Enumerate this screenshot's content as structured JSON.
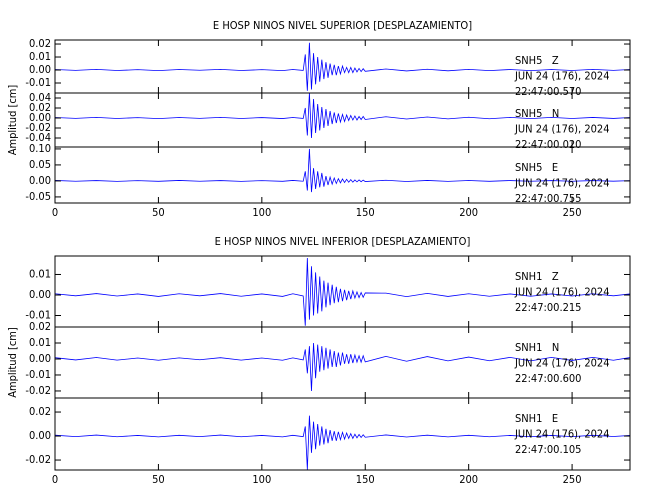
{
  "chart_data": [
    {
      "type": "line",
      "title": "E HOSP NINOS NIVEL SUPERIOR [DESPLAZAMIENTO]",
      "annotations": [
        "SNH5   Z",
        "JUN 24 (176), 2024",
        "22:47:00.570"
      ],
      "color": "#0000ff",
      "xlim": [
        0,
        278
      ],
      "xticks": [
        0,
        50,
        100,
        150,
        200,
        250
      ],
      "xtick_labels": false,
      "ylim": [
        -0.0177,
        0.0231
      ],
      "yticks": [
        0.02,
        0.01,
        {
          "value": 0,
          "label": "0.00"
        },
        -0.01
      ],
      "x": [
        0,
        10,
        20,
        30,
        40,
        50,
        60,
        70,
        80,
        90,
        100,
        110,
        115,
        120,
        121,
        122,
        123,
        124,
        125,
        126,
        127,
        128,
        129,
        130,
        131,
        132,
        133,
        134,
        135,
        136,
        137,
        138,
        139,
        140,
        141,
        142,
        143,
        144,
        145,
        146,
        147,
        148,
        149,
        150,
        160,
        170,
        180,
        190,
        200,
        210,
        220,
        230,
        240,
        250,
        260,
        270,
        278
      ],
      "values": [
        0.0004,
        -0.0003,
        0.0005,
        -0.0004,
        0.0003,
        -0.0005,
        0.0004,
        -0.0002,
        0.0005,
        -0.0004,
        0.0003,
        -0.0005,
        0.0004,
        -0.0003,
        0.012,
        -0.016,
        0.021,
        -0.015,
        0.013,
        -0.011,
        0.01,
        -0.009,
        0.008,
        -0.007,
        0.006,
        -0.006,
        0.005,
        -0.004,
        0.004,
        -0.004,
        0.003,
        -0.003,
        0.003,
        -0.002,
        0.002,
        -0.002,
        0.002,
        -0.002,
        0.0015,
        -0.0015,
        0.0012,
        -0.0012,
        0.001,
        -0.001,
        0.0008,
        -0.0007,
        0.0006,
        -0.0006,
        0.0005,
        -0.0005,
        0.0004,
        -0.0005,
        0.0004,
        -0.0004,
        0.0005,
        -0.0003,
        0.0004
      ]
    },
    {
      "type": "line",
      "ylabel": "Amplitud [cm]",
      "annotations": [
        "SNH5   N",
        "JUN 24 (176), 2024",
        "22:47:00.020"
      ],
      "color": "#0000ff",
      "xlim": [
        0,
        278
      ],
      "xticks": [
        0,
        50,
        100,
        150,
        200,
        250
      ],
      "xtick_labels": false,
      "ylim": [
        -0.058,
        0.05
      ],
      "yticks": [
        0.04,
        0.02,
        {
          "value": 0,
          "label": "0.00"
        },
        -0.02,
        -0.04
      ],
      "x": [
        0,
        10,
        20,
        30,
        40,
        50,
        60,
        70,
        80,
        90,
        100,
        110,
        115,
        120,
        121,
        122,
        123,
        124,
        125,
        126,
        127,
        128,
        129,
        130,
        131,
        132,
        133,
        134,
        135,
        136,
        137,
        138,
        139,
        140,
        141,
        142,
        143,
        144,
        145,
        146,
        147,
        148,
        149,
        150,
        160,
        170,
        180,
        190,
        200,
        210,
        220,
        230,
        240,
        250,
        260,
        270,
        278
      ],
      "values": [
        0.001,
        -0.0008,
        0.0012,
        -0.001,
        0.0008,
        -0.0012,
        0.001,
        -0.0007,
        0.0012,
        -0.001,
        0.0009,
        -0.0011,
        0.001,
        -0.0009,
        0.02,
        -0.035,
        0.05,
        -0.04,
        0.038,
        -0.03,
        0.028,
        -0.025,
        0.022,
        -0.02,
        0.018,
        -0.016,
        0.014,
        -0.012,
        0.011,
        -0.01,
        0.009,
        -0.008,
        0.007,
        -0.007,
        0.006,
        -0.005,
        0.005,
        -0.004,
        0.004,
        -0.004,
        0.003,
        -0.003,
        0.003,
        -0.003,
        0.0025,
        -0.002,
        0.002,
        -0.0018,
        0.0015,
        -0.0015,
        0.0012,
        -0.0013,
        0.0012,
        -0.001,
        0.0011,
        -0.0009,
        0.001
      ]
    },
    {
      "type": "line",
      "annotations": [
        "SNH5   E",
        "JUN 24 (176), 2024",
        "22:47:00.755"
      ],
      "color": "#0000ff",
      "xlim": [
        0,
        278
      ],
      "xticks": [
        0,
        50,
        100,
        150,
        200,
        250
      ],
      "xtick_labels": true,
      "ylim": [
        -0.069,
        0.106
      ],
      "yticks": [
        {
          "value": 0.1,
          "label": "0.10"
        },
        0.05,
        {
          "value": 0,
          "label": "0.00"
        },
        -0.05
      ],
      "x": [
        0,
        10,
        20,
        30,
        40,
        50,
        60,
        70,
        80,
        90,
        100,
        110,
        115,
        120,
        121,
        122,
        123,
        124,
        125,
        126,
        127,
        128,
        129,
        130,
        131,
        132,
        133,
        134,
        135,
        136,
        137,
        138,
        139,
        140,
        141,
        142,
        143,
        144,
        145,
        146,
        147,
        148,
        149,
        150,
        160,
        170,
        180,
        190,
        200,
        210,
        220,
        230,
        240,
        250,
        260,
        270,
        278
      ],
      "values": [
        0.0015,
        -0.001,
        0.0012,
        -0.0015,
        0.001,
        -0.0012,
        0.0015,
        -0.001,
        0.0012,
        -0.0014,
        0.001,
        -0.0012,
        0.0015,
        -0.001,
        0.03,
        -0.03,
        0.1,
        -0.035,
        0.04,
        -0.025,
        0.03,
        -0.02,
        0.025,
        -0.018,
        0.015,
        -0.013,
        0.012,
        -0.01,
        0.009,
        -0.008,
        0.007,
        -0.006,
        0.006,
        -0.005,
        0.005,
        -0.004,
        0.004,
        -0.004,
        0.003,
        -0.003,
        0.003,
        -0.0025,
        0.0025,
        -0.002,
        0.002,
        -0.0018,
        0.0015,
        -0.0015,
        0.0013,
        -0.0012,
        0.0012,
        -0.001,
        0.0011,
        -0.001,
        0.0012,
        -0.0009,
        0.001
      ]
    },
    {
      "type": "line",
      "title": "E HOSP NINOS NIVEL INFERIOR [DESPLAZAMIENTO]",
      "annotations": [
        "SNH1   Z",
        "JUN 24 (176), 2024",
        "22:47:00.215"
      ],
      "color": "#0000ff",
      "xlim": [
        0,
        278
      ],
      "xticks": [
        0,
        50,
        100,
        150,
        200,
        250
      ],
      "xtick_labels": false,
      "ylim": [
        -0.0156,
        0.019
      ],
      "yticks": [
        0.01,
        {
          "value": 0,
          "label": "0.00"
        },
        -0.01
      ],
      "x": [
        0,
        10,
        20,
        30,
        40,
        50,
        60,
        70,
        80,
        90,
        100,
        110,
        115,
        120,
        121,
        122,
        123,
        124,
        125,
        126,
        127,
        128,
        129,
        130,
        131,
        132,
        133,
        134,
        135,
        136,
        137,
        138,
        139,
        140,
        141,
        142,
        143,
        144,
        145,
        146,
        147,
        148,
        149,
        150,
        160,
        170,
        180,
        190,
        200,
        210,
        220,
        230,
        240,
        250,
        260,
        270,
        278
      ],
      "values": [
        0.0006,
        -0.0004,
        0.0007,
        -0.0005,
        0.0005,
        -0.0007,
        0.0006,
        -0.0004,
        0.0007,
        -0.0006,
        0.0005,
        -0.0007,
        0.0006,
        -0.0005,
        -0.015,
        0.018,
        -0.012,
        0.014,
        -0.01,
        0.011,
        -0.009,
        0.009,
        -0.008,
        0.007,
        -0.006,
        0.006,
        -0.005,
        0.005,
        -0.004,
        0.004,
        -0.0035,
        0.003,
        -0.003,
        0.0025,
        -0.0025,
        0.002,
        -0.002,
        0.002,
        -0.0015,
        0.0015,
        -0.0013,
        0.0012,
        -0.0011,
        0.001,
        0.0009,
        -0.0008,
        0.0008,
        -0.0007,
        0.0006,
        -0.0006,
        0.0005,
        -0.0006,
        0.0005,
        -0.0005,
        0.0006,
        -0.0004,
        0.0005
      ]
    },
    {
      "type": "line",
      "ylabel": "Amplitud [cm]",
      "annotations": [
        "SNH1   N",
        "JUN 24 (176), 2024",
        "22:47:00.600"
      ],
      "color": "#0000ff",
      "xlim": [
        0,
        278
      ],
      "xticks": [
        0,
        50,
        100,
        150,
        200,
        250
      ],
      "xtick_labels": false,
      "ylim": [
        -0.0244,
        0.02
      ],
      "yticks": [
        0.02,
        0.01,
        {
          "value": 0,
          "label": "0.00"
        },
        -0.01,
        -0.02
      ],
      "x": [
        0,
        10,
        20,
        30,
        40,
        50,
        60,
        70,
        80,
        90,
        100,
        110,
        115,
        120,
        121,
        122,
        123,
        124,
        125,
        126,
        127,
        128,
        129,
        130,
        131,
        132,
        133,
        134,
        135,
        136,
        137,
        138,
        139,
        140,
        141,
        142,
        143,
        144,
        145,
        146,
        147,
        148,
        149,
        150,
        160,
        170,
        180,
        190,
        200,
        210,
        220,
        230,
        240,
        250,
        260,
        270,
        278
      ],
      "values": [
        0.0008,
        -0.0006,
        0.0009,
        -0.0007,
        0.0006,
        -0.0008,
        0.0007,
        -0.0005,
        0.0008,
        -0.0007,
        0.0006,
        -0.0008,
        0.0007,
        -0.0006,
        0.006,
        -0.009,
        0.008,
        -0.02,
        0.01,
        -0.012,
        0.009,
        -0.008,
        0.008,
        -0.007,
        0.007,
        -0.006,
        0.006,
        -0.005,
        0.005,
        -0.005,
        0.004,
        -0.004,
        0.004,
        -0.003,
        0.003,
        -0.003,
        0.003,
        -0.0025,
        0.0025,
        -0.002,
        0.002,
        -0.002,
        0.002,
        -0.0018,
        0.0016,
        -0.0014,
        0.0015,
        -0.0012,
        0.0012,
        -0.0011,
        0.001,
        -0.0012,
        0.001,
        -0.0009,
        0.001,
        -0.0008,
        0.0009
      ]
    },
    {
      "type": "line",
      "annotations": [
        "SNH1   E",
        "JUN 24 (176), 2024",
        "22:47:00.105"
      ],
      "color": "#0000ff",
      "xlim": [
        0,
        278
      ],
      "xticks": [
        0,
        50,
        100,
        150,
        200,
        250
      ],
      "xtick_labels": true,
      "ylim": [
        -0.0283,
        0.0317
      ],
      "yticks": [
        0.02,
        {
          "value": 0,
          "label": "0.00"
        },
        -0.02
      ],
      "x": [
        0,
        10,
        20,
        30,
        40,
        50,
        60,
        70,
        80,
        90,
        100,
        110,
        115,
        120,
        121,
        122,
        123,
        124,
        125,
        126,
        127,
        128,
        129,
        130,
        131,
        132,
        133,
        134,
        135,
        136,
        137,
        138,
        139,
        140,
        141,
        142,
        143,
        144,
        145,
        146,
        147,
        148,
        149,
        150,
        160,
        170,
        180,
        190,
        200,
        210,
        220,
        230,
        240,
        250,
        260,
        270,
        278
      ],
      "values": [
        0.0007,
        -0.0005,
        0.0008,
        -0.0006,
        0.0005,
        -0.0007,
        0.0006,
        -0.0005,
        0.0008,
        -0.0006,
        0.0005,
        -0.0007,
        0.0006,
        -0.0005,
        0.008,
        -0.028,
        0.017,
        -0.014,
        0.012,
        -0.011,
        0.01,
        -0.008,
        0.008,
        -0.007,
        0.006,
        -0.006,
        0.005,
        -0.004,
        0.004,
        -0.004,
        0.0035,
        -0.003,
        0.003,
        -0.0025,
        0.0025,
        -0.002,
        0.002,
        -0.002,
        0.0015,
        -0.0015,
        0.0013,
        -0.0012,
        0.0011,
        -0.001,
        0.0009,
        -0.0008,
        0.0007,
        -0.0007,
        0.0006,
        -0.0006,
        0.0005,
        -0.0006,
        0.0005,
        -0.0005,
        0.0006,
        -0.0004,
        0.0005
      ]
    }
  ]
}
